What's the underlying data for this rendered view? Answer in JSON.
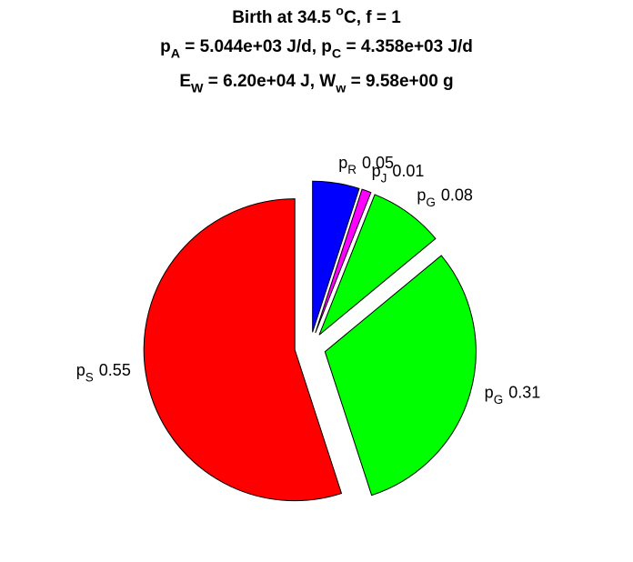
{
  "chart_data": {
    "type": "pie",
    "title": [
      [
        {
          "text": "Birth at 34.5 "
        },
        {
          "text": "o",
          "shift": "sup"
        },
        {
          "text": "C, f = 1"
        }
      ],
      [
        {
          "text": "p"
        },
        {
          "text": "A",
          "shift": "sub"
        },
        {
          "text": " = 5.044e+03 J/d, p"
        },
        {
          "text": "C",
          "shift": "sub"
        },
        {
          "text": " = 4.358e+03 J/d"
        }
      ],
      [
        {
          "text": "E"
        },
        {
          "text": "W",
          "shift": "sub"
        },
        {
          "text": " = 6.20e+04 J, W"
        },
        {
          "text": "w",
          "shift": "sub"
        },
        {
          "text": " = 9.58e+00 g"
        }
      ]
    ],
    "categories": [
      [
        {
          "text": "p"
        },
        {
          "text": "R",
          "shift": "sub"
        }
      ],
      [
        {
          "text": "p"
        },
        {
          "text": "J",
          "shift": "sub"
        }
      ],
      [
        {
          "text": "p"
        },
        {
          "text": "G",
          "shift": "sub"
        }
      ],
      [
        {
          "text": "p"
        },
        {
          "text": "G",
          "shift": "sub"
        }
      ],
      [
        {
          "text": "p"
        },
        {
          "text": "S",
          "shift": "sub"
        }
      ]
    ],
    "values": [
      0.05,
      0.01,
      0.08,
      0.31,
      0.55
    ],
    "colors": [
      "#0000ff",
      "#ff00ff",
      "#00ff00",
      "#00ff00",
      "#ff0000"
    ],
    "explode": true
  }
}
